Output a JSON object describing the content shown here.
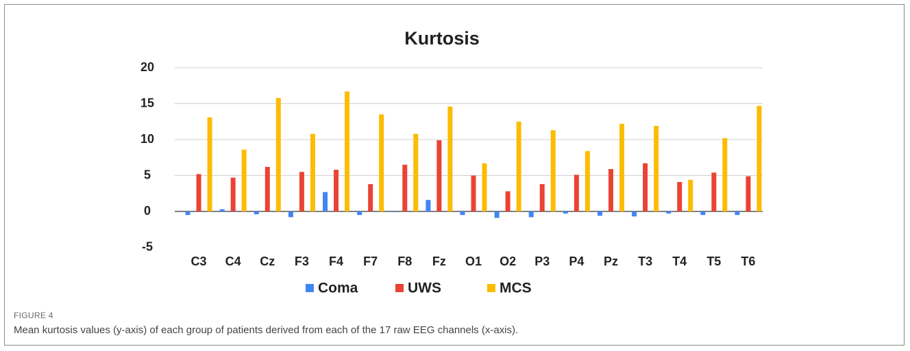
{
  "chart_data": {
    "type": "bar",
    "title": "Kurtosis",
    "categories": [
      "C3",
      "C4",
      "Cz",
      "F3",
      "F4",
      "F7",
      "F8",
      "Fz",
      "O1",
      "O2",
      "P3",
      "P4",
      "Pz",
      "T3",
      "T4",
      "T5",
      "T6"
    ],
    "series": [
      {
        "name": "Coma",
        "color": "#4285f4",
        "values": [
          -0.5,
          0.3,
          -0.4,
          -0.8,
          2.7,
          -0.5,
          -0.1,
          1.6,
          -0.5,
          -0.9,
          -0.8,
          -0.3,
          -0.6,
          -0.7,
          -0.3,
          -0.5,
          -0.5
        ]
      },
      {
        "name": "UWS",
        "color": "#ea4335",
        "values": [
          5.2,
          4.7,
          6.2,
          5.5,
          5.8,
          3.8,
          6.5,
          9.9,
          5.0,
          2.8,
          3.8,
          5.1,
          5.9,
          6.7,
          4.1,
          5.4,
          4.9
        ]
      },
      {
        "name": "MCS",
        "color": "#fbbc04",
        "values": [
          13.1,
          8.6,
          15.8,
          10.8,
          16.7,
          13.5,
          10.8,
          14.6,
          6.7,
          12.5,
          11.3,
          8.4,
          12.2,
          11.9,
          4.4,
          10.2,
          14.7
        ]
      }
    ],
    "ylim": [
      -5,
      20
    ],
    "yticks": [
      -5,
      0,
      5,
      10,
      15,
      20
    ],
    "grid": true,
    "legend": "bottom"
  },
  "figure_label": "FIGURE 4",
  "caption": "Mean kurtosis values (y-axis) of each group of patients derived from each of the 17 raw EEG channels (x-axis)."
}
